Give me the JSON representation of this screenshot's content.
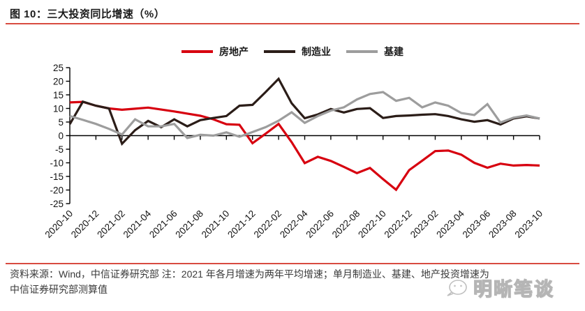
{
  "header": {
    "title": "图 10：三大投资同比增速（%）"
  },
  "colors": {
    "rule_red": "#d84b40",
    "axis_black": "#000000",
    "footer_text": "#3a3a3a",
    "watermark_gray": "#b5b5b5",
    "series_red": "#d7000f",
    "series_black": "#2b1d18",
    "series_gray": "#9d9d9d"
  },
  "footer": {
    "source_note_line1": "资料来源：Wind，中信证券研究部  注：2021 年各月增速为两年平均增速；单月制造业、基建、地产投资增速为",
    "source_note_line2": "中信证券研究部测算值",
    "watermark_text": "明晰笔谈"
  },
  "chart_data": {
    "type": "line",
    "title": "三大投资同比增速（%）",
    "unit": "%",
    "grid": false,
    "legend_position": "top",
    "ylim": [
      -25,
      25
    ],
    "y_ticks": [
      25,
      20,
      15,
      10,
      5,
      0,
      -5,
      -10,
      -15,
      -20,
      -25
    ],
    "x_label_every": 2,
    "x": [
      "2020-10",
      "2020-11",
      "2020-12",
      "2021-01",
      "2021-02",
      "2021-03",
      "2021-04",
      "2021-05",
      "2021-06",
      "2021-07",
      "2021-08",
      "2021-09",
      "2021-10",
      "2021-11",
      "2021-12",
      "2022-01",
      "2022-02",
      "2022-03",
      "2022-04",
      "2022-05",
      "2022-06",
      "2022-07",
      "2022-08",
      "2022-09",
      "2022-10",
      "2022-11",
      "2022-12",
      "2023-01",
      "2023-02",
      "2023-03",
      "2023-04",
      "2023-05",
      "2023-06",
      "2023-07",
      "2023-08",
      "2023-09",
      "2023-10"
    ],
    "series": [
      {
        "id": "real-estate",
        "name": "房地产",
        "color": "#d7000f",
        "values": [
          12.2,
          12.4,
          11.0,
          10.0,
          9.5,
          9.9,
          10.3,
          9.6,
          8.9,
          8.1,
          7.3,
          6.0,
          4.2,
          4.0,
          -2.8,
          0.7,
          4.3,
          -2.4,
          -10.1,
          -7.8,
          -9.3,
          -11.5,
          -13.8,
          -11.9,
          -16.0,
          -19.9,
          -12.7,
          -9.2,
          -5.7,
          -5.5,
          -7.0,
          -10.0,
          -11.8,
          -10.3,
          -11.0,
          -10.8,
          -11.0
        ]
      },
      {
        "id": "manufacturing",
        "name": "制造业",
        "color": "#2b1d18",
        "values": [
          4.2,
          12.5,
          11.0,
          10.0,
          -3.0,
          2.0,
          5.4,
          3.1,
          6.0,
          3.4,
          5.7,
          6.5,
          7.2,
          11.0,
          11.3,
          16.0,
          20.9,
          11.9,
          6.4,
          7.8,
          9.8,
          8.5,
          9.8,
          10.1,
          6.5,
          7.2,
          7.4,
          7.7,
          7.9,
          7.2,
          6.0,
          5.1,
          5.7,
          4.1,
          6.3,
          7.1,
          6.3
        ]
      },
      {
        "id": "infrastructure",
        "name": "基建",
        "color": "#9d9d9d",
        "values": [
          7.2,
          5.8,
          4.3,
          2.5,
          0.4,
          6.0,
          3.4,
          3.4,
          4.3,
          -0.9,
          0.3,
          0.0,
          1.2,
          -0.4,
          1.3,
          3.1,
          5.5,
          8.6,
          4.7,
          7.2,
          9.2,
          10.4,
          13.3,
          15.3,
          16.0,
          12.8,
          13.9,
          10.4,
          12.2,
          11.0,
          8.3,
          7.6,
          11.6,
          4.8,
          6.6,
          7.4,
          6.3
        ]
      }
    ]
  }
}
